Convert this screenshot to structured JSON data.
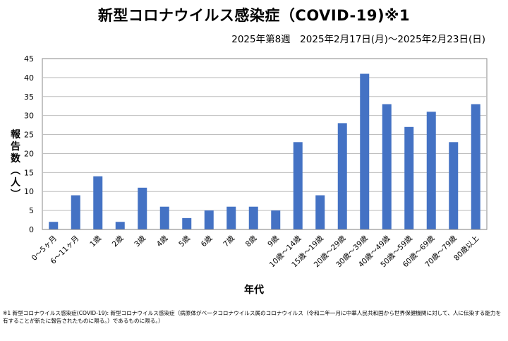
{
  "chart_data": {
    "type": "bar",
    "title": "新型コロナウイルス感染症（COVID-19)※1",
    "subtitle": "2025年第8週　2025年2月17日(月)～2025年2月23日(日)",
    "xlabel": "年代",
    "ylabel_chars": [
      "報",
      "告",
      "数",
      "︵",
      "人",
      "︶"
    ],
    "ylim": [
      0,
      45
    ],
    "yticks": [
      "0",
      "5",
      "10",
      "15",
      "20",
      "25",
      "30",
      "35",
      "40",
      "45"
    ],
    "grid": true,
    "legend": "none",
    "bar_color": "#4472C4",
    "categories": [
      "0～5ヶ月",
      "6～11ヶ月",
      "1歳",
      "2歳",
      "3歳",
      "4歳",
      "5歳",
      "6歳",
      "7歳",
      "8歳",
      "9歳",
      "10歳～14歳",
      "15歳～19歳",
      "20歳～29歳",
      "30歳～39歳",
      "40歳～49歳",
      "50歳～59歳",
      "60歳～69歳",
      "70歳～79歳",
      "80歳以上"
    ],
    "values": [
      2,
      9,
      14,
      2,
      11,
      6,
      3,
      5,
      6,
      6,
      5,
      23,
      9,
      28,
      41,
      33,
      27,
      31,
      23,
      33
    ]
  },
  "footnote": "※1 新型コロナウイルス感染症(COVID-19): 新型コロナウイルス感染症（病原体がベータコロナウイルス属のコロナウイルス（令和二年一月に中華人民共和国から世界保健機関に対して、人に伝染する能力を有することが新たに報告されたものに限る。）であるものに限る。）"
}
